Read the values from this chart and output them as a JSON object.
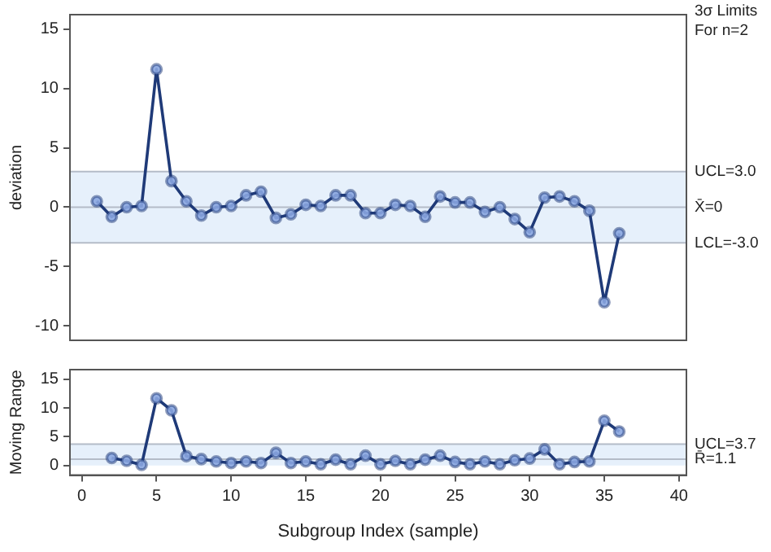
{
  "chart_data": [
    {
      "type": "line",
      "ylabel": "deviation",
      "annotations": [
        "3σ Limits",
        "For n=2"
      ],
      "x": [
        1,
        2,
        3,
        4,
        5,
        6,
        7,
        8,
        9,
        10,
        11,
        12,
        13,
        14,
        15,
        16,
        17,
        18,
        19,
        20,
        21,
        22,
        23,
        24,
        25,
        26,
        27,
        28,
        29,
        30,
        31,
        32,
        33,
        34,
        35,
        36
      ],
      "series": [
        {
          "color": "#1f3a78",
          "values": [
            0.5,
            -0.8,
            0,
            0.1,
            11.6,
            2.2,
            0.5,
            -0.7,
            0,
            0.1,
            1.0,
            1.3,
            -0.9,
            -0.6,
            0.2,
            0.1,
            1.0,
            1.0,
            -0.5,
            -0.5,
            0.2,
            0.1,
            -0.8,
            0.9,
            0.4,
            0.4,
            -0.4,
            0,
            -1.0,
            -2.1,
            0.8,
            0.9,
            0.5,
            -0.3,
            -8.0,
            -2.2
          ]
        }
      ],
      "xlim": [
        -0.8,
        40.5
      ],
      "xticks": [
        0,
        5,
        10,
        15,
        20,
        25,
        30,
        35,
        40
      ],
      "ylim": [
        -11.2,
        16.2
      ],
      "yticks": [
        -10,
        -5,
        0,
        5,
        10,
        15
      ],
      "tick_labels": "y",
      "bands": [
        {
          "axis": "y",
          "from": -3,
          "to": 3,
          "color": "#e6f0fb"
        }
      ],
      "ref_lines": [
        {
          "axis": "y",
          "value": 3,
          "label": "UCL=3.0",
          "color": "#b4bcc8"
        },
        {
          "axis": "y",
          "value": 0,
          "label": "X̄=0",
          "color": "#b4bcc8"
        },
        {
          "axis": "y",
          "value": -3,
          "label": "LCL=-3.0",
          "color": "#b4bcc8"
        }
      ],
      "marker": "circle",
      "line_style": "solid",
      "grid": false,
      "legend": false
    },
    {
      "type": "line",
      "xlabel": "Subgroup Index (sample)",
      "ylabel": "Moving Range",
      "x": [
        2,
        3,
        4,
        5,
        6,
        7,
        8,
        9,
        10,
        11,
        12,
        13,
        14,
        15,
        16,
        17,
        18,
        19,
        20,
        21,
        22,
        23,
        24,
        25,
        26,
        27,
        28,
        29,
        30,
        31,
        32,
        33,
        34,
        35,
        36
      ],
      "series": [
        {
          "color": "#1f3a78",
          "values": [
            1.3,
            0.8,
            0.1,
            11.7,
            9.6,
            1.6,
            1.1,
            0.7,
            0.4,
            0.7,
            0.4,
            2.2,
            0.4,
            0.7,
            0.2,
            1.0,
            0.2,
            1.7,
            0.2,
            0.8,
            0.2,
            1.0,
            1.7,
            0.6,
            0.2,
            0.7,
            0.2,
            0.9,
            1.2,
            2.8,
            0.2,
            0.6,
            0.7,
            7.8,
            5.9
          ]
        }
      ],
      "xlim": [
        -0.8,
        40.5
      ],
      "xticks": [
        0,
        5,
        10,
        15,
        20,
        25,
        30,
        35,
        40
      ],
      "ylim": [
        -1.7,
        16.7
      ],
      "yticks": [
        0,
        5,
        10,
        15
      ],
      "bands": [
        {
          "axis": "y",
          "from": 0,
          "to": 3.7,
          "color": "#e6f0fb"
        }
      ],
      "ref_lines": [
        {
          "axis": "y",
          "value": 3.7,
          "label": "UCL=3.7",
          "color": "#b4bcc8"
        },
        {
          "axis": "y",
          "value": 1.1,
          "label": "R̄=1.1",
          "color": "#b4bcc8"
        }
      ],
      "marker": "circle",
      "line_style": "solid",
      "grid": false,
      "legend": false
    }
  ]
}
